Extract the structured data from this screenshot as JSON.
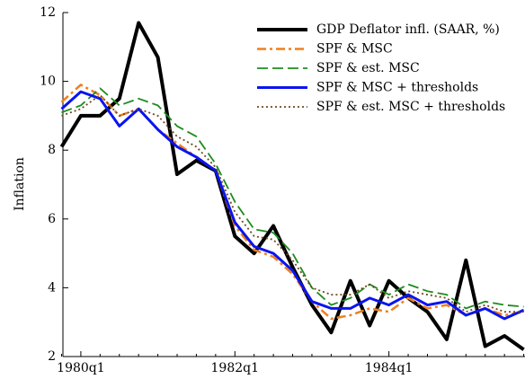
{
  "chart_data": {
    "type": "line",
    "y_label": "Inflation",
    "categories": [
      null,
      "1980q1",
      null,
      null,
      null,
      null,
      null,
      null,
      null,
      "1982q1",
      null,
      null,
      null,
      null,
      null,
      null,
      null,
      "1984q1",
      null,
      null,
      null,
      null,
      null,
      null,
      null
    ],
    "ylim": [
      2,
      12
    ],
    "yticks": [
      2,
      4,
      6,
      8,
      10,
      12
    ],
    "legend": "upper-right",
    "series": [
      {
        "name": "GDP Deflator infl. (SAAR, %)",
        "color": "#000000",
        "linestyle": "solid",
        "linewidth": 4,
        "values": [
          8.1,
          9.0,
          9.0,
          9.5,
          11.7,
          10.7,
          7.3,
          7.7,
          7.4,
          5.5,
          5.0,
          5.8,
          4.6,
          3.5,
          2.7,
          4.2,
          2.9,
          4.2,
          3.7,
          3.3,
          2.5,
          4.8,
          2.3,
          2.6,
          2.2
        ]
      },
      {
        "name": "SPF & MSC",
        "color": "#f07f1e",
        "linestyle": "dashdot",
        "linewidth": 2.5,
        "values": [
          9.4,
          9.9,
          9.6,
          9.0,
          9.2,
          8.6,
          8.2,
          7.8,
          7.4,
          5.8,
          5.1,
          4.9,
          4.4,
          3.6,
          3.1,
          3.2,
          3.4,
          3.3,
          3.7,
          3.4,
          3.5,
          3.2,
          3.4,
          3.2,
          3.3
        ]
      },
      {
        "name": "SPF & est. MSC",
        "color": "#1e8c1e",
        "linestyle": "dashed",
        "linewidth": 1.8,
        "values": [
          9.1,
          9.3,
          9.8,
          9.3,
          9.5,
          9.3,
          8.7,
          8.4,
          7.6,
          6.5,
          5.7,
          5.6,
          5.0,
          4.0,
          3.5,
          3.7,
          4.1,
          3.8,
          4.1,
          3.9,
          3.8,
          3.4,
          3.6,
          3.5,
          3.45
        ]
      },
      {
        "name": "SPF & MSC + thresholds",
        "color": "#0a14f0",
        "linestyle": "solid",
        "linewidth": 3,
        "values": [
          9.2,
          9.7,
          9.5,
          8.7,
          9.2,
          8.6,
          8.1,
          7.8,
          7.4,
          5.9,
          5.2,
          5.0,
          4.5,
          3.6,
          3.4,
          3.4,
          3.7,
          3.5,
          3.8,
          3.5,
          3.6,
          3.2,
          3.4,
          3.1,
          3.35
        ]
      },
      {
        "name": "SPF & est. MSC + thresholds",
        "color": "#6b4a1e",
        "linestyle": "dotted",
        "linewidth": 1.8,
        "values": [
          9.0,
          9.2,
          9.6,
          9.0,
          9.2,
          9.0,
          8.4,
          8.1,
          7.5,
          6.2,
          5.5,
          5.4,
          4.8,
          4.0,
          3.8,
          3.8,
          4.1,
          3.7,
          3.9,
          3.8,
          3.7,
          3.3,
          3.5,
          3.3,
          3.3
        ]
      }
    ]
  }
}
